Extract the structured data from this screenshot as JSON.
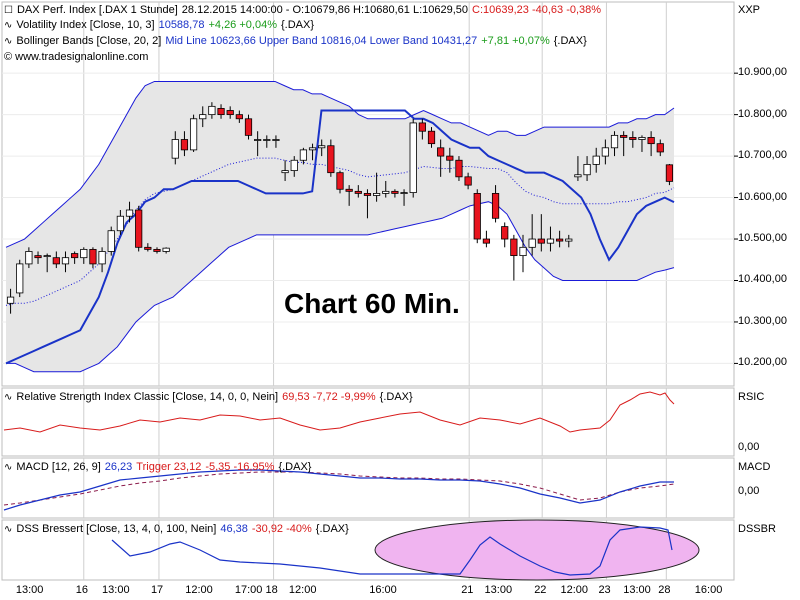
{
  "header": {
    "main_name": "DAX Perf. Index [.DAX  1 Stunde]",
    "main_ohlc": "28.12.2015 14:00:00 - O:10679,86 H:10680,61 L:10629,50",
    "main_close": "C:10639,23 -40,63 -0,38%",
    "vola_name": "Volatility Index [Close, 10, 3]",
    "vola_value": "10588,78",
    "vola_change": "+4,26 +0,04%",
    "vola_src": "{.DAX}",
    "bb_name": "Bollinger Bands [Close, 20, 2]",
    "bb_values": "Mid Line 10623,66 Upper Band 10816,04 Lower Band 10431,27",
    "bb_change": "+7,81 +0,07%",
    "bb_src": "{.DAX}",
    "copyright": "© www.tradesignalonline.com",
    "symbol_label": "XXP"
  },
  "overlay_text": "Chart 60 Min.",
  "rsi": {
    "name": "Relative Strength Index Classic [Close, 14, 0, 0, Nein]",
    "values": "69,53 -7,72 -9,99%",
    "src": "{.DAX}",
    "label": "RSIC",
    "zero": "0,00"
  },
  "macd": {
    "name": "MACD [12, 26, 9]",
    "value": "26,23",
    "trigger": "Trigger 23,12",
    "change": "-5,35 -16,95%",
    "src": "{.DAX}",
    "label": "MACD",
    "zero": "0,00"
  },
  "dss": {
    "name": "DSS Bressert [Close, 13, 4, 0, 100, Nein]",
    "value": "46,38",
    "change": "-30,92 -40%",
    "src": "{.DAX}",
    "label": "DSSBR"
  },
  "colors": {
    "up": "#ffffff",
    "down": "#e8141e",
    "band_fill": "#e6e6e6",
    "band_line": "#1a1ad8",
    "vola_line": "#1a33c8",
    "rsi_line": "#d81b1b",
    "macd_line": "#1a33c8",
    "trigger_line": "#8b1a4a",
    "dss_highlight": "#f0b4f0"
  },
  "chart_data": {
    "type": "candlestick",
    "y_ticks": [
      "10.900,00",
      "10.800,00",
      "10.700,00",
      "10.600,00",
      "10.500,00",
      "10.400,00",
      "10.300,00",
      "10.200,00"
    ],
    "y_tick_values": [
      10900,
      10800,
      10700,
      10600,
      10500,
      10400,
      10300,
      10200
    ],
    "ylim": [
      10160,
      10980
    ],
    "x_labels": [
      "13:00",
      "16",
      "13:00",
      "17",
      "12:00",
      "17:00",
      "18",
      "12:00",
      "16:00",
      "21",
      "13:00",
      "22",
      "12:00",
      "23",
      "13:00",
      "28",
      "16:00"
    ],
    "x_label_pos": [
      0.03,
      0.112,
      0.148,
      0.215,
      0.262,
      0.33,
      0.372,
      0.404,
      0.514,
      0.64,
      0.672,
      0.74,
      0.776,
      0.828,
      0.862,
      0.91,
      0.96
    ],
    "candles": [
      {
        "o": 10345,
        "h": 10380,
        "l": 10320,
        "c": 10360
      },
      {
        "o": 10370,
        "h": 10450,
        "l": 10360,
        "c": 10440
      },
      {
        "o": 10440,
        "h": 10480,
        "l": 10430,
        "c": 10470
      },
      {
        "o": 10460,
        "h": 10470,
        "l": 10440,
        "c": 10455
      },
      {
        "o": 10460,
        "h": 10465,
        "l": 10420,
        "c": 10460
      },
      {
        "o": 10455,
        "h": 10470,
        "l": 10430,
        "c": 10440
      },
      {
        "o": 10440,
        "h": 10470,
        "l": 10420,
        "c": 10455
      },
      {
        "o": 10465,
        "h": 10470,
        "l": 10440,
        "c": 10455
      },
      {
        "o": 10455,
        "h": 10480,
        "l": 10440,
        "c": 10475
      },
      {
        "o": 10475,
        "h": 10480,
        "l": 10430,
        "c": 10440
      },
      {
        "o": 10440,
        "h": 10480,
        "l": 10420,
        "c": 10470
      },
      {
        "o": 10470,
        "h": 10530,
        "l": 10460,
        "c": 10520
      },
      {
        "o": 10520,
        "h": 10570,
        "l": 10510,
        "c": 10555
      },
      {
        "o": 10555,
        "h": 10590,
        "l": 10540,
        "c": 10570
      },
      {
        "o": 10570,
        "h": 10580,
        "l": 10470,
        "c": 10480
      },
      {
        "o": 10480,
        "h": 10490,
        "l": 10470,
        "c": 10475
      },
      {
        "o": 10475,
        "h": 10480,
        "l": 10465,
        "c": 10470
      },
      {
        "o": 10470,
        "h": 10480,
        "l": 10465,
        "c": 10478
      },
      {
        "o": 10695,
        "h": 10760,
        "l": 10680,
        "c": 10740
      },
      {
        "o": 10740,
        "h": 10760,
        "l": 10700,
        "c": 10715
      },
      {
        "o": 10715,
        "h": 10800,
        "l": 10710,
        "c": 10790
      },
      {
        "o": 10790,
        "h": 10820,
        "l": 10770,
        "c": 10800
      },
      {
        "o": 10800,
        "h": 10830,
        "l": 10790,
        "c": 10820
      },
      {
        "o": 10815,
        "h": 10825,
        "l": 10790,
        "c": 10800
      },
      {
        "o": 10810,
        "h": 10820,
        "l": 10790,
        "c": 10800
      },
      {
        "o": 10800,
        "h": 10810,
        "l": 10780,
        "c": 10790
      },
      {
        "o": 10790,
        "h": 10800,
        "l": 10740,
        "c": 10750
      },
      {
        "o": 10740,
        "h": 10760,
        "l": 10700,
        "c": 10740
      },
      {
        "o": 10740,
        "h": 10750,
        "l": 10720,
        "c": 10740
      },
      {
        "o": 10740,
        "h": 10750,
        "l": 10720,
        "c": 10740
      },
      {
        "o": 10660,
        "h": 10690,
        "l": 10640,
        "c": 10665
      },
      {
        "o": 10665,
        "h": 10700,
        "l": 10650,
        "c": 10690
      },
      {
        "o": 10690,
        "h": 10720,
        "l": 10680,
        "c": 10715
      },
      {
        "o": 10715,
        "h": 10730,
        "l": 10690,
        "c": 10720
      },
      {
        "o": 10720,
        "h": 10740,
        "l": 10700,
        "c": 10725
      },
      {
        "o": 10725,
        "h": 10740,
        "l": 10650,
        "c": 10660
      },
      {
        "o": 10660,
        "h": 10665,
        "l": 10610,
        "c": 10620
      },
      {
        "o": 10620,
        "h": 10630,
        "l": 10580,
        "c": 10615
      },
      {
        "o": 10615,
        "h": 10630,
        "l": 10600,
        "c": 10610
      },
      {
        "o": 10610,
        "h": 10620,
        "l": 10550,
        "c": 10605
      },
      {
        "o": 10605,
        "h": 10660,
        "l": 10590,
        "c": 10610
      },
      {
        "o": 10610,
        "h": 10640,
        "l": 10600,
        "c": 10615
      },
      {
        "o": 10615,
        "h": 10620,
        "l": 10600,
        "c": 10610
      },
      {
        "o": 10610,
        "h": 10620,
        "l": 10580,
        "c": 10612
      },
      {
        "o": 10612,
        "h": 10790,
        "l": 10600,
        "c": 10780
      },
      {
        "o": 10780,
        "h": 10790,
        "l": 10740,
        "c": 10760
      },
      {
        "o": 10760,
        "h": 10770,
        "l": 10720,
        "c": 10730
      },
      {
        "o": 10720,
        "h": 10740,
        "l": 10650,
        "c": 10700
      },
      {
        "o": 10700,
        "h": 10720,
        "l": 10660,
        "c": 10690
      },
      {
        "o": 10690,
        "h": 10700,
        "l": 10640,
        "c": 10650
      },
      {
        "o": 10650,
        "h": 10660,
        "l": 10620,
        "c": 10630
      },
      {
        "o": 10610,
        "h": 10620,
        "l": 10490,
        "c": 10500
      },
      {
        "o": 10500,
        "h": 10520,
        "l": 10480,
        "c": 10490
      },
      {
        "o": 10610,
        "h": 10630,
        "l": 10540,
        "c": 10550
      },
      {
        "o": 10530,
        "h": 10540,
        "l": 10480,
        "c": 10500
      },
      {
        "o": 10500,
        "h": 10510,
        "l": 10400,
        "c": 10460
      },
      {
        "o": 10460,
        "h": 10510,
        "l": 10420,
        "c": 10480
      },
      {
        "o": 10480,
        "h": 10560,
        "l": 10460,
        "c": 10500
      },
      {
        "o": 10500,
        "h": 10560,
        "l": 10470,
        "c": 10490
      },
      {
        "o": 10490,
        "h": 10530,
        "l": 10470,
        "c": 10500
      },
      {
        "o": 10500,
        "h": 10520,
        "l": 10480,
        "c": 10495
      },
      {
        "o": 10495,
        "h": 10510,
        "l": 10480,
        "c": 10500
      },
      {
        "o": 10650,
        "h": 10700,
        "l": 10640,
        "c": 10655
      },
      {
        "o": 10655,
        "h": 10700,
        "l": 10640,
        "c": 10680
      },
      {
        "o": 10680,
        "h": 10720,
        "l": 10660,
        "c": 10700
      },
      {
        "o": 10700,
        "h": 10740,
        "l": 10680,
        "c": 10720
      },
      {
        "o": 10720,
        "h": 10760,
        "l": 10700,
        "c": 10750
      },
      {
        "o": 10750,
        "h": 10760,
        "l": 10700,
        "c": 10745
      },
      {
        "o": 10745,
        "h": 10760,
        "l": 10720,
        "c": 10740
      },
      {
        "o": 10740,
        "h": 10750,
        "l": 10710,
        "c": 10745
      },
      {
        "o": 10745,
        "h": 10760,
        "l": 10700,
        "c": 10730
      },
      {
        "o": 10730,
        "h": 10740,
        "l": 10700,
        "c": 10710
      },
      {
        "o": 10679,
        "h": 10681,
        "l": 10630,
        "c": 10639
      }
    ],
    "upper_band": [
      10480,
      10490,
      10500,
      10520,
      10540,
      10560,
      10580,
      10600,
      10620,
      10650,
      10680,
      10720,
      10760,
      10800,
      10840,
      10870,
      10880,
      10880,
      10880,
      10880,
      10880,
      10880,
      10880,
      10880,
      10880,
      10880,
      10880,
      10880,
      10880,
      10880,
      10870,
      10860,
      10860,
      10850,
      10850,
      10840,
      10830,
      10820,
      10800,
      10790,
      10790,
      10790,
      10790,
      10790,
      10800,
      10810,
      10800,
      10790,
      10780,
      10780,
      10770,
      10760,
      10750,
      10760,
      10760,
      10750,
      10750,
      10760,
      10770,
      10770,
      10770,
      10770,
      10770,
      10770,
      10770,
      10770,
      10780,
      10780,
      10790,
      10790,
      10800,
      10800,
      10816
    ],
    "lower_band": [
      10200,
      10200,
      10190,
      10180,
      10180,
      10180,
      10180,
      10180,
      10180,
      10190,
      10200,
      10220,
      10240,
      10270,
      10300,
      10320,
      10340,
      10350,
      10360,
      10380,
      10400,
      10420,
      10440,
      10460,
      10480,
      10490,
      10500,
      10510,
      10510,
      10510,
      10510,
      10510,
      10510,
      10510,
      10510,
      10510,
      10510,
      10510,
      10510,
      10510,
      10515,
      10520,
      10525,
      10530,
      10535,
      10540,
      10545,
      10550,
      10560,
      10570,
      10580,
      10585,
      10590,
      10580,
      10560,
      10520,
      10480,
      10450,
      10430,
      10410,
      10400,
      10400,
      10400,
      10400,
      10400,
      10400,
      10400,
      10400,
      10400,
      10410,
      10420,
      10425,
      10431
    ],
    "vola_index": [
      10200,
      10210,
      10220,
      10230,
      10240,
      10250,
      10260,
      10270,
      10280,
      10320,
      10360,
      10420,
      10490,
      10540,
      10560,
      10590,
      10600,
      10620,
      10620,
      10630,
      10640,
      10640,
      10640,
      10640,
      10640,
      10640,
      10630,
      10620,
      10610,
      10610,
      10610,
      10610,
      10610,
      10615,
      10810,
      10810,
      10810,
      10810,
      10810,
      10810,
      10810,
      10810,
      10810,
      10810,
      10790,
      10790,
      10780,
      10760,
      10740,
      10730,
      10720,
      10720,
      10700,
      10690,
      10680,
      10670,
      10660,
      10660,
      10660,
      10650,
      10640,
      10620,
      10600,
      10560,
      10500,
      10450,
      10480,
      10520,
      10560,
      10580,
      10590,
      10600,
      10589
    ]
  }
}
